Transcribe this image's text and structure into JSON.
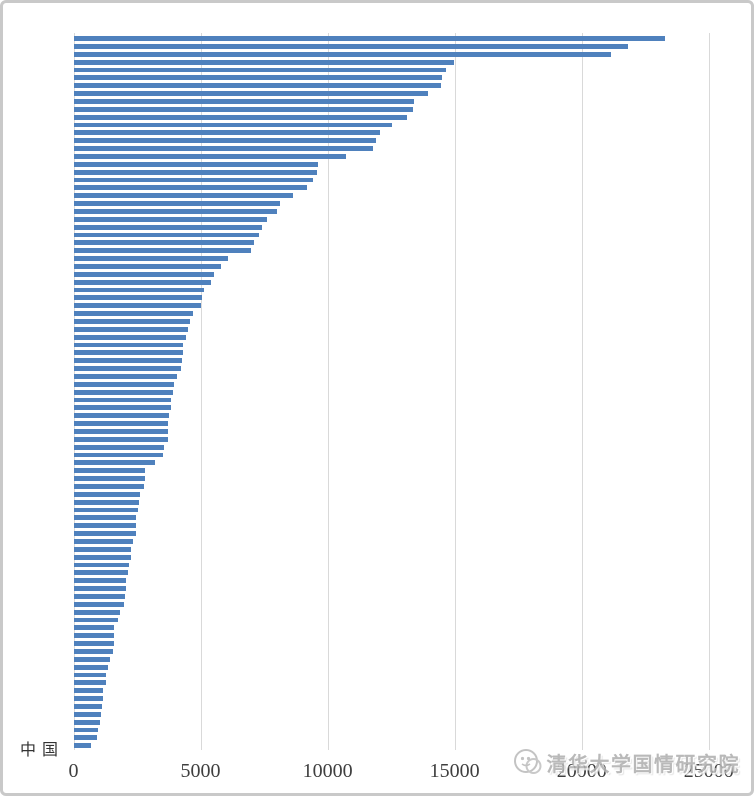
{
  "page": {
    "background": "#ffffff",
    "frame_color": "#c9c9c9"
  },
  "chart_data": {
    "type": "bar",
    "orientation": "horizontal",
    "title": "",
    "xlabel": "",
    "ylabel": "",
    "bar_color": "#4f81bd",
    "gridline_color": "#d9d9d9",
    "axis_label_color": "#3f3f3f",
    "x_axis": {
      "min": 0,
      "max": 25000,
      "ticks": [
        0,
        5000,
        10000,
        15000,
        20000,
        25000
      ],
      "tick_labels": [
        "0",
        "5000",
        "10000",
        "15000",
        "20000",
        "25000"
      ],
      "gridlines": true,
      "legend": "none"
    },
    "highlighted_category": {
      "label": "中国",
      "index": 90
    },
    "values": [
      23250,
      21800,
      21150,
      14950,
      14650,
      14500,
      14450,
      13950,
      13400,
      13350,
      13100,
      12500,
      12050,
      11900,
      11750,
      10700,
      9600,
      9550,
      9400,
      9150,
      8600,
      8100,
      8000,
      7600,
      7400,
      7300,
      7100,
      6950,
      6050,
      5800,
      5500,
      5400,
      5100,
      5050,
      5000,
      4700,
      4550,
      4500,
      4400,
      4300,
      4270,
      4250,
      4230,
      4050,
      3950,
      3900,
      3830,
      3830,
      3740,
      3690,
      3690,
      3690,
      3560,
      3520,
      3200,
      2810,
      2790,
      2770,
      2580,
      2540,
      2520,
      2450,
      2430,
      2430,
      2340,
      2230,
      2230,
      2150,
      2140,
      2060,
      2060,
      2000,
      1950,
      1810,
      1740,
      1590,
      1580,
      1580,
      1540,
      1430,
      1320,
      1270,
      1260,
      1160,
      1150,
      1100,
      1080,
      1040,
      940,
      910,
      660
    ]
  },
  "watermark": {
    "text": "清华大学国情研究院",
    "color": "#b0b0b0",
    "logo_icon": "circular-emblem"
  }
}
